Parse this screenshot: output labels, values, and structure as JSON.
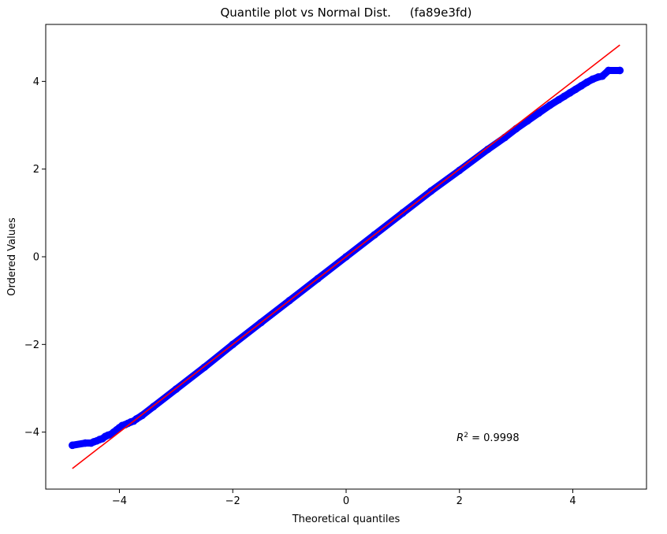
{
  "chart_data": {
    "type": "scatter",
    "title": "Quantile plot vs Normal Dist.     (fa89e3fd)",
    "xlabel": "Theoretical quantiles",
    "ylabel": "Ordered Values",
    "xlim": [
      -5.3,
      5.3
    ],
    "ylim": [
      -5.3,
      5.3
    ],
    "xticks": [
      -4,
      -2,
      0,
      2,
      4
    ],
    "yticks": [
      -4,
      -2,
      0,
      2,
      4
    ],
    "grid": false,
    "annotation": {
      "text_prefix": "R",
      "superscript": "2",
      "text_suffix": " = 0.9998",
      "x": 1.95,
      "y": -4.2
    },
    "series": [
      {
        "kind": "points",
        "color": "#0000ff",
        "x": [
          -4.83,
          -4.6,
          -4.5,
          -4.45,
          -4.4,
          -4.35,
          -4.3,
          -4.25,
          -4.2,
          -4.15,
          -4.1,
          -4.05,
          -4.0,
          -3.95,
          -3.9,
          -3.85,
          -3.8,
          -3.75,
          -3.7,
          -3.6,
          -3.4,
          -3.0,
          -2.5,
          -2.0,
          -1.5,
          -1.0,
          -0.5,
          0.0,
          0.5,
          1.0,
          1.5,
          2.0,
          2.5,
          2.8,
          3.0,
          3.2,
          3.4,
          3.6,
          3.75,
          3.85,
          3.95,
          4.05,
          4.15,
          4.25,
          4.35,
          4.45,
          4.52,
          4.63,
          4.83
        ],
        "y": [
          -4.3,
          -4.25,
          -4.25,
          -4.22,
          -4.2,
          -4.17,
          -4.15,
          -4.1,
          -4.07,
          -4.05,
          -4.0,
          -3.95,
          -3.9,
          -3.85,
          -3.83,
          -3.8,
          -3.77,
          -3.75,
          -3.7,
          -3.62,
          -3.42,
          -3.02,
          -2.52,
          -2.0,
          -1.5,
          -1.0,
          -0.5,
          0.0,
          0.5,
          1.0,
          1.5,
          1.97,
          2.45,
          2.72,
          2.92,
          3.1,
          3.28,
          3.46,
          3.58,
          3.66,
          3.74,
          3.82,
          3.9,
          3.98,
          4.05,
          4.1,
          4.12,
          4.25,
          4.25
        ]
      },
      {
        "kind": "fit-line",
        "color": "#ff0000",
        "x": [
          -4.83,
          4.83
        ],
        "y": [
          -4.83,
          4.83
        ]
      }
    ]
  }
}
